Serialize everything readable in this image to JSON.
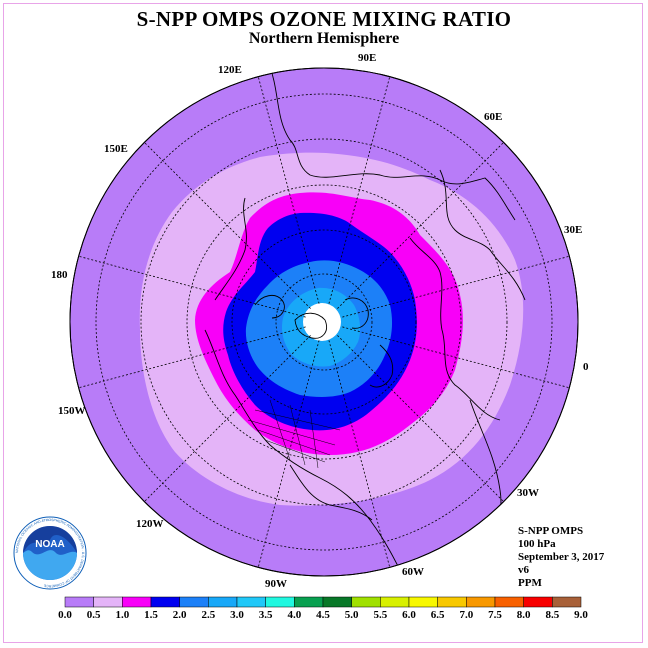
{
  "title": "S-NPP OMPS OZONE MIXING RATIO",
  "subtitle": "Northern Hemisphere",
  "longitude_labels": [
    "120E",
    "90E",
    "60E",
    "30E",
    "150E",
    "180",
    "0",
    "150W",
    "30W",
    "120W",
    "60W",
    "90W"
  ],
  "info": {
    "instrument": "S-NPP OMPS",
    "pressure_level": "100 hPa",
    "date": "September 3, 2017",
    "version": "v6",
    "units": "PPM"
  },
  "logo": {
    "name": "noaa-logo",
    "text": "NOAA",
    "ring_text": "NATIONAL OCEANIC AND ATMOSPHERIC ADMINISTRATION · U.S. DEPARTMENT OF COMMERCE"
  },
  "colors": {
    "outside": "#b87cf8",
    "light_lilac": "#e4b4f8",
    "magenta": "#f800f8",
    "blue": "#0000f0",
    "mid_blue": "#1c80f8",
    "light_blue": "#18a8f8",
    "pole": "#ffffff",
    "graticule": "#000000"
  },
  "colorbar": {
    "ticks": [
      "0.0",
      "0.5",
      "1.0",
      "1.5",
      "2.0",
      "2.5",
      "3.0",
      "3.5",
      "4.0",
      "4.5",
      "5.0",
      "5.5",
      "6.0",
      "6.5",
      "7.0",
      "7.5",
      "8.0",
      "8.5",
      "9.0"
    ],
    "colors": [
      "#b87cf8",
      "#e4b4f8",
      "#f800f8",
      "#0000f0",
      "#1c80f8",
      "#18a8f8",
      "#20c8f8",
      "#20f8e0",
      "#08a050",
      "#087828",
      "#a0e000",
      "#d8f000",
      "#f8f800",
      "#f8c800",
      "#f89800",
      "#f86000",
      "#f80000",
      "#a86038"
    ]
  }
}
